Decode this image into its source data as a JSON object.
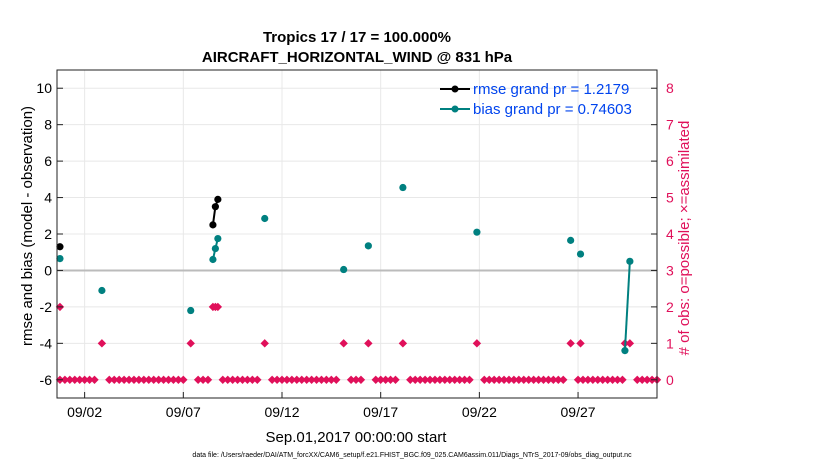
{
  "chart_data": {
    "type": "line",
    "title": "Tropics 17 / 17 = 100.000%",
    "subtitle": "AIRCRAFT_HORIZONTAL_WIND @ 831 hPa",
    "xlabel": "Sep.01,2017 00:00:00 start",
    "ylabel": "rmse and bias (model - observation)",
    "y2label": "# of obs: o=possible; ×=assimilated",
    "xlim": [
      0.6,
      31.0
    ],
    "ylim": [
      -7,
      11
    ],
    "y2lim": [
      -0.5,
      8.5
    ],
    "x_ticks": [
      {
        "x": 2,
        "label": "09/02"
      },
      {
        "x": 7,
        "label": "09/07"
      },
      {
        "x": 12,
        "label": "09/12"
      },
      {
        "x": 17,
        "label": "09/17"
      },
      {
        "x": 22,
        "label": "09/22"
      },
      {
        "x": 27,
        "label": "09/27"
      }
    ],
    "y_ticks": [
      "-6",
      "-4",
      "-2",
      "0",
      "2",
      "4",
      "6",
      "8",
      "10"
    ],
    "y2_ticks": [
      "0",
      "1",
      "2",
      "3",
      "4",
      "5",
      "6",
      "7",
      "8"
    ],
    "colors": {
      "rmse": "#000000",
      "bias": "#008080",
      "obs": "#e0105a",
      "zero": "#bbbbbb",
      "legend_text": "#0044ee"
    },
    "series": [
      {
        "name": "rmse grand pr = 1.2179",
        "color": "#000000",
        "x": [
          0.75,
          8.5,
          8.625,
          8.75
        ],
        "y": [
          1.3,
          2.5,
          3.5,
          3.9
        ],
        "segments": [
          [
            1,
            2,
            3
          ]
        ]
      },
      {
        "name": "bias grand pr = 0.74603",
        "color": "#008080",
        "x": [
          0.75,
          2.875,
          7.375,
          8.5,
          8.625,
          8.75,
          11.125,
          15.125,
          16.375,
          18.125,
          21.875,
          26.625,
          27.125,
          29.375,
          29.625
        ],
        "y": [
          0.65,
          -1.1,
          -2.2,
          0.6,
          1.2,
          1.75,
          2.85,
          0.05,
          1.35,
          4.55,
          2.1,
          1.65,
          0.9,
          -4.4,
          0.5
        ],
        "segments": [
          [
            3,
            4,
            5
          ],
          [
            13,
            14
          ]
        ]
      }
    ],
    "obs_possible_x": [
      0.75,
      2.875,
      7.375,
      8.5,
      8.625,
      8.75,
      11.125,
      15.125,
      16.375,
      18.125,
      21.875,
      26.625,
      27.125,
      29.375,
      29.625
    ],
    "obs_possible_y": [
      2,
      1,
      1,
      2,
      2,
      2,
      1,
      1,
      1,
      1,
      1,
      1,
      1,
      1,
      1
    ],
    "obs_assimilated_y": 0,
    "obs_assimilated_x_range": [
      0.75,
      31.0
    ],
    "obs_assimilated_gaps": [
      2.875,
      7.375,
      8.625,
      11.125,
      15.125,
      16.375,
      18.125,
      21.875,
      26.625,
      29.625
    ],
    "legend_location": "top-right",
    "footnote": "data file: /Users/raeder/DAI/ATM_forcXX/CAM6_setup/f.e21.FHIST_BGC.f09_025.CAM6assim.011/Diags_NTrS_2017-09/obs_diag_output.nc"
  }
}
